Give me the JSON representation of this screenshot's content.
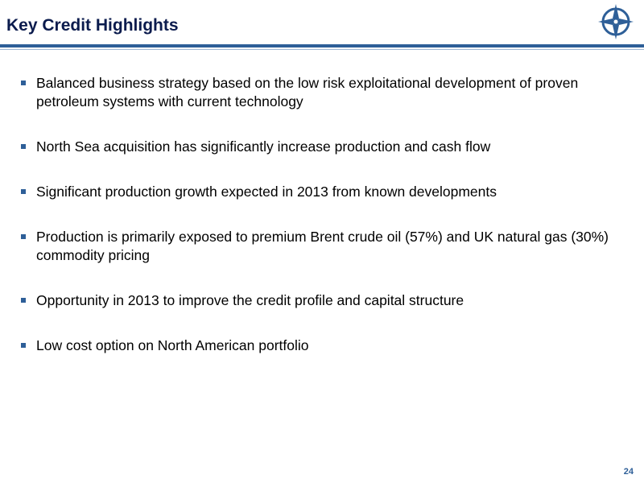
{
  "header": {
    "title": "Key Credit Highlights",
    "logo_icon": "compass-star-icon",
    "accent_color": "#2e5f98",
    "title_color": "#0b1b4d"
  },
  "bullets": [
    {
      "text": "Balanced business strategy based on the low risk exploitational development of proven petroleum systems with current technology"
    },
    {
      "text": "North Sea acquisition has significantly increase production and cash flow"
    },
    {
      "text": "Significant production growth expected in 2013 from known developments"
    },
    {
      "text": "Production is primarily exposed to premium Brent crude oil (57%) and UK natural gas (30%) commodity pricing"
    },
    {
      "text": "Opportunity in 2013 to improve the credit profile and capital structure"
    },
    {
      "text": "Low cost option on North American portfolio"
    }
  ],
  "footer": {
    "page_number": "24"
  }
}
